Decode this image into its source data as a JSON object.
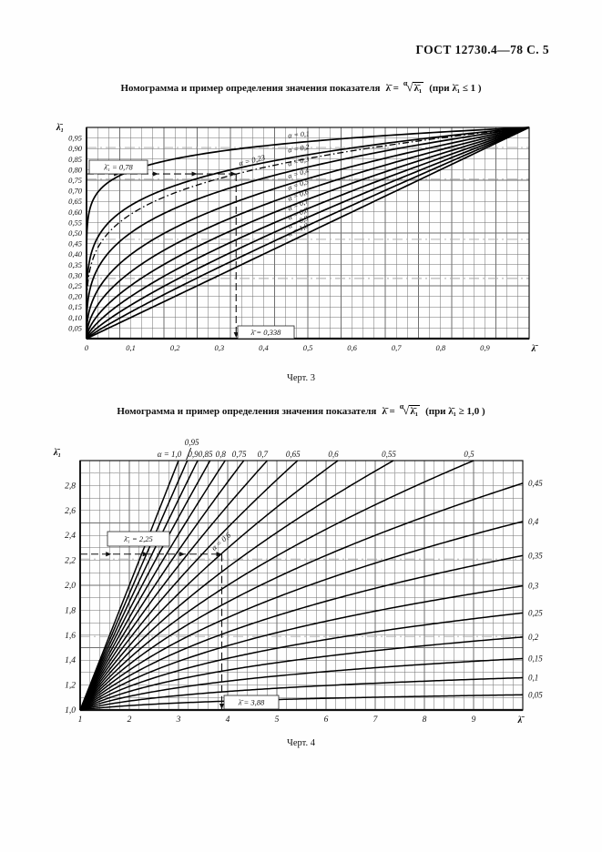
{
  "page": {
    "header": "ГОСТ 12730.4—78 С. 5"
  },
  "figures": [
    {
      "title_prefix": "Номограмма и пример определения значения показателя",
      "formula": {
        "lhs": "λ̄ =",
        "index": "α",
        "radical": "√",
        "radicand": "λ̄₁",
        "condition": "(при λ̄₁ ≤ 1 )"
      },
      "caption": "Черт. 3"
    },
    {
      "title_prefix": "Номограмма и пример  определения значения показателя",
      "formula": {
        "lhs": "λ̄ =",
        "index": "α",
        "radical": "√",
        "radicand": "λ̄₁",
        "condition": "(при λ̄₁ ≥ 1,0 )"
      },
      "caption": "Черт. 4"
    }
  ],
  "chart_data": [
    {
      "type": "line",
      "title": "Номограмма и пример определения значения показателя λ̄ = α√λ̄₁ (при λ̄₁ ≤ 1)",
      "caption": "Черт. 3",
      "xlabel": "λ̄",
      "ylabel": "λ̄₁",
      "xlim": [
        0,
        1.0
      ],
      "ylim": [
        0,
        1.0
      ],
      "grid": true,
      "x_minor_step": 0.025,
      "y_minor_step": 0.05,
      "curve_function": "λ̄₁ = λ̄^α  (семейство кривых y = x^α)",
      "x_ticks": [
        {
          "v": 0,
          "label": "0"
        },
        {
          "v": 0.1,
          "label": "0,1"
        },
        {
          "v": 0.2,
          "label": "0,2"
        },
        {
          "v": 0.3,
          "label": "0,3"
        },
        {
          "v": 0.4,
          "label": "0,4"
        },
        {
          "v": 0.5,
          "label": "0,5"
        },
        {
          "v": 0.6,
          "label": "0,6"
        },
        {
          "v": 0.7,
          "label": "0,7"
        },
        {
          "v": 0.8,
          "label": "0,8"
        },
        {
          "v": 0.9,
          "label": "0,9"
        }
      ],
      "y_ticks": [
        {
          "v": 0.05,
          "label": "0,05"
        },
        {
          "v": 0.1,
          "label": "0,10"
        },
        {
          "v": 0.15,
          "label": "0,15"
        },
        {
          "v": 0.2,
          "label": "0,20"
        },
        {
          "v": 0.25,
          "label": "0,25"
        },
        {
          "v": 0.3,
          "label": "0,30"
        },
        {
          "v": 0.35,
          "label": "0,35"
        },
        {
          "v": 0.4,
          "label": "0,40"
        },
        {
          "v": 0.45,
          "label": "0,45"
        },
        {
          "v": 0.5,
          "label": "0,50"
        },
        {
          "v": 0.55,
          "label": "0,55"
        },
        {
          "v": 0.6,
          "label": "0,60"
        },
        {
          "v": 0.65,
          "label": "0,65"
        },
        {
          "v": 0.7,
          "label": "0,70"
        },
        {
          "v": 0.75,
          "label": "0,75"
        },
        {
          "v": 0.8,
          "label": "0,80"
        },
        {
          "v": 0.85,
          "label": "0,85"
        },
        {
          "v": 0.9,
          "label": "0,90"
        },
        {
          "v": 0.95,
          "label": "0,95"
        }
      ],
      "series": [
        {
          "alpha": 0.1,
          "label": "α = 0,1"
        },
        {
          "alpha": 0.2,
          "label": "α = 0,2"
        },
        {
          "alpha": 0.3,
          "label": "α = 0,3"
        },
        {
          "alpha": 0.4,
          "label": "α = 0,4"
        },
        {
          "alpha": 0.5,
          "label": "α = 0,5"
        },
        {
          "alpha": 0.6,
          "label": "α = 0,6"
        },
        {
          "alpha": 0.7,
          "label": "α = 0,7"
        },
        {
          "alpha": 0.8,
          "label": "α = 0,8"
        },
        {
          "alpha": 0.9,
          "label": "α = 0,9"
        },
        {
          "alpha": 1.0,
          "label": "α = 1,0"
        }
      ],
      "example_curve_dashed": true,
      "example": {
        "alpha": 0.23,
        "alpha_label": "α = 0,23",
        "lambda1": 0.78,
        "lambda1_label": "λ̄₁ = 0,78",
        "lambda": 0.338,
        "lambda_label": "λ̄ = 0,338"
      }
    },
    {
      "type": "line",
      "title": "Номограмма и пример определения значения показателя λ̄ = α√λ̄₁ (при λ̄₁ ≥ 1,0)",
      "caption": "Черт. 4",
      "xlabel": "λ̄",
      "ylabel": "λ̄₁",
      "xlim": [
        1,
        10
      ],
      "ylim": [
        1.0,
        3.0
      ],
      "grid": true,
      "x_minor_step": 0.2,
      "y_minor_step": 0.1,
      "curve_function": "λ̄₁ = λ̄^α  (семейство кривых y = x^α)",
      "x_ticks": [
        {
          "v": 1,
          "label": "1"
        },
        {
          "v": 2,
          "label": "2"
        },
        {
          "v": 3,
          "label": "3"
        },
        {
          "v": 4,
          "label": "4"
        },
        {
          "v": 5,
          "label": "5"
        },
        {
          "v": 6,
          "label": "6"
        },
        {
          "v": 7,
          "label": "7"
        },
        {
          "v": 8,
          "label": "8"
        },
        {
          "v": 9,
          "label": "9"
        }
      ],
      "y_ticks": [
        {
          "v": 1.0,
          "label": "1,0"
        },
        {
          "v": 1.2,
          "label": "1,2"
        },
        {
          "v": 1.4,
          "label": "1,4"
        },
        {
          "v": 1.6,
          "label": "1,6"
        },
        {
          "v": 1.8,
          "label": "1,8"
        },
        {
          "v": 2.0,
          "label": "2,0"
        },
        {
          "v": 2.2,
          "label": "2,2"
        },
        {
          "v": 2.4,
          "label": "2,4"
        },
        {
          "v": 2.6,
          "label": "2,6"
        },
        {
          "v": 2.8,
          "label": "2,8"
        }
      ],
      "series": [
        {
          "alpha": 1.0,
          "label": "α = 1,0",
          "label_pos": "top"
        },
        {
          "alpha": 0.95,
          "label": "0,95",
          "label_pos": "top-raised"
        },
        {
          "alpha": 0.9,
          "label": "0,9",
          "label_pos": "top"
        },
        {
          "alpha": 0.85,
          "label": "0,85",
          "label_pos": "top"
        },
        {
          "alpha": 0.8,
          "label": "0,8",
          "label_pos": "top"
        },
        {
          "alpha": 0.75,
          "label": "0,75",
          "label_pos": "top"
        },
        {
          "alpha": 0.7,
          "label": "0,7",
          "label_pos": "top"
        },
        {
          "alpha": 0.65,
          "label": "0,65",
          "label_pos": "top"
        },
        {
          "alpha": 0.6,
          "label": "0,6",
          "label_pos": "top"
        },
        {
          "alpha": 0.55,
          "label": "0,55",
          "label_pos": "top"
        },
        {
          "alpha": 0.5,
          "label": "0,5",
          "label_pos": "top"
        },
        {
          "alpha": 0.45,
          "label": "0,45",
          "label_pos": "right"
        },
        {
          "alpha": 0.4,
          "label": "0,4",
          "label_pos": "right"
        },
        {
          "alpha": 0.35,
          "label": "0,35",
          "label_pos": "right"
        },
        {
          "alpha": 0.3,
          "label": "0,3",
          "label_pos": "right"
        },
        {
          "alpha": 0.25,
          "label": "0,25",
          "label_pos": "right"
        },
        {
          "alpha": 0.2,
          "label": "0,2",
          "label_pos": "right"
        },
        {
          "alpha": 0.15,
          "label": "0,15",
          "label_pos": "right"
        },
        {
          "alpha": 0.1,
          "label": "0,1",
          "label_pos": "right"
        },
        {
          "alpha": 0.05,
          "label": "0,05",
          "label_pos": "right"
        }
      ],
      "example_curve_dashed": false,
      "example": {
        "alpha": 0.6,
        "alpha_label": "α = 0,6",
        "lambda1": 2.25,
        "lambda1_label": "λ̄₁ = 2,25",
        "lambda": 3.88,
        "lambda_label": "λ̄ = 3,88"
      }
    }
  ]
}
